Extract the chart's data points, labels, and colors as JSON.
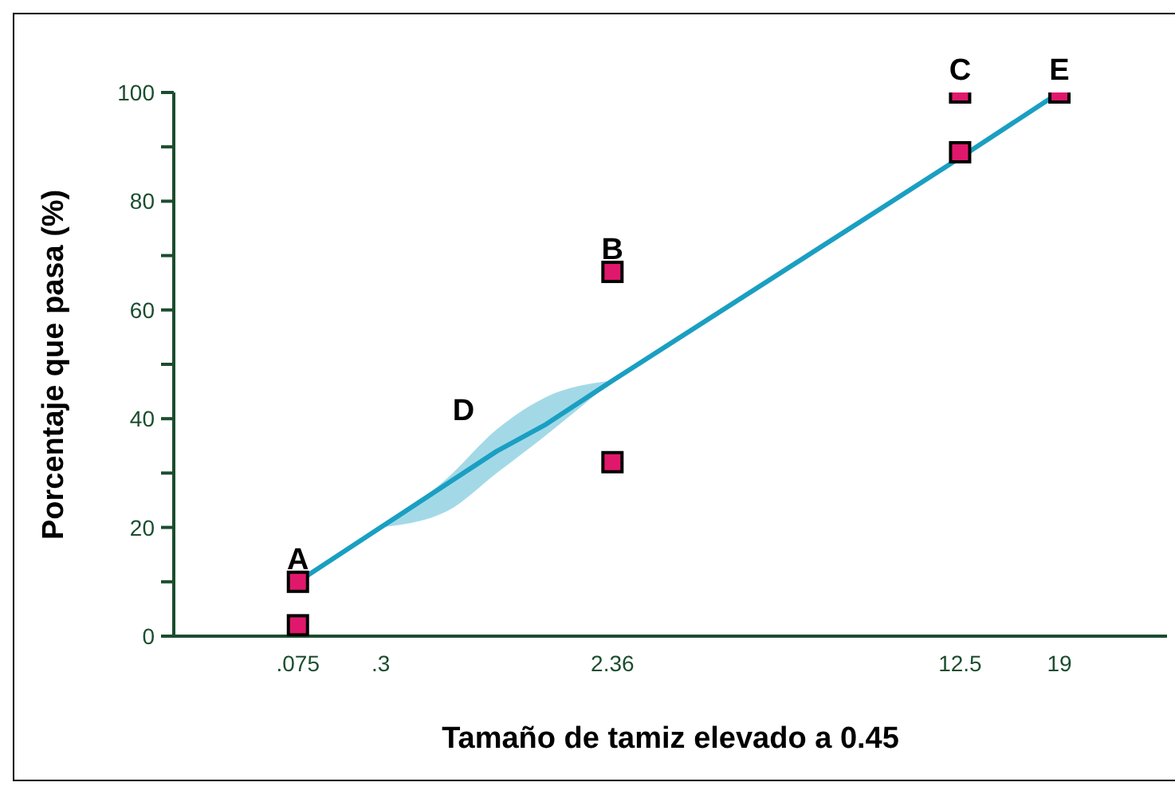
{
  "chart_data": {
    "type": "scatter",
    "xlabel": "Tamaño de tamiz elevado a 0.45",
    "ylabel": "Porcentaje que pasa (%)",
    "categories": [
      null,
      null,
      null,
      null,
      null,
      null,
      null,
      ".075",
      null,
      null,
      null,
      null,
      ".3",
      null,
      null,
      null,
      null,
      null,
      null,
      null,
      null,
      null,
      null,
      null,
      null,
      null,
      "2.36",
      null,
      null,
      null,
      null,
      null,
      null,
      null,
      null,
      null,
      null,
      null,
      null,
      null,
      null,
      null,
      null,
      null,
      null,
      null,
      null,
      "12.5",
      null,
      null,
      null,
      null,
      null,
      "19",
      null,
      null,
      null,
      null,
      null,
      null
    ],
    "ylim": [
      0,
      100
    ],
    "yticks": [
      0,
      {
        "value": 10,
        "label": null
      },
      20,
      {
        "value": 30,
        "label": null
      },
      40,
      {
        "value": 50,
        "label": null
      },
      60,
      {
        "value": 70,
        "label": null
      },
      80,
      {
        "value": 90,
        "label": null
      },
      100
    ],
    "marker": "square",
    "series": [
      {
        "color": "#e0186c",
        "values": [
          null,
          null,
          null,
          null,
          null,
          null,
          null,
          10,
          null,
          null,
          null,
          null,
          null,
          null,
          null,
          null,
          null,
          null,
          null,
          null,
          null,
          null,
          null,
          null,
          null,
          null,
          67,
          null,
          null,
          null,
          null,
          null,
          null,
          null,
          null,
          null,
          null,
          null,
          null,
          null,
          null,
          null,
          null,
          null,
          null,
          null,
          null,
          100,
          null,
          null,
          null,
          null,
          null,
          100,
          null,
          null,
          null,
          null,
          null,
          null
        ]
      },
      {
        "color": "#e0186c",
        "values": [
          null,
          null,
          null,
          null,
          null,
          null,
          null,
          2,
          null,
          null,
          null,
          null,
          null,
          null,
          null,
          null,
          null,
          null,
          null,
          null,
          null,
          null,
          null,
          null,
          null,
          null,
          32,
          null,
          null,
          null,
          null,
          null,
          null,
          null,
          null,
          null,
          null,
          null,
          null,
          null,
          null,
          null,
          null,
          null,
          null,
          null,
          null,
          89,
          null,
          null,
          null,
          null,
          null,
          null,
          null,
          null,
          null,
          null,
          null,
          null
        ]
      },
      {
        "type": "line",
        "color": "#1a9fc2",
        "marker": "none",
        "values": [
          null,
          null,
          null,
          null,
          null,
          null,
          null,
          10,
          null,
          null,
          null,
          null,
          20,
          null,
          null,
          null,
          28,
          null,
          null,
          34,
          null,
          null,
          39,
          null,
          null,
          null,
          47,
          null,
          null,
          null,
          null,
          null,
          null,
          null,
          null,
          null,
          null,
          null,
          null,
          null,
          null,
          null,
          null,
          null,
          null,
          null,
          null,
          88,
          null,
          null,
          null,
          null,
          null,
          100,
          null,
          null,
          null,
          null,
          null,
          null
        ],
        "lower": [
          null,
          null,
          null,
          null,
          null,
          null,
          null,
          null,
          null,
          null,
          null,
          null,
          20,
          null,
          null,
          null,
          23,
          null,
          null,
          30,
          null,
          null,
          37,
          null,
          null,
          null,
          47,
          null,
          null,
          null,
          null,
          null,
          null,
          null,
          null,
          null,
          null,
          null,
          null,
          null,
          null,
          null,
          null,
          null,
          null,
          null,
          null,
          null,
          null,
          null,
          null,
          null,
          null,
          null,
          null,
          null,
          null,
          null,
          null,
          null
        ],
        "upper": [
          null,
          null,
          null,
          null,
          null,
          null,
          null,
          null,
          null,
          null,
          null,
          null,
          20,
          null,
          null,
          null,
          29,
          null,
          null,
          38,
          null,
          null,
          44,
          null,
          null,
          null,
          47,
          null,
          null,
          null,
          null,
          null,
          null,
          null,
          null,
          null,
          null,
          null,
          null,
          null,
          null,
          null,
          null,
          null,
          null,
          null,
          null,
          null,
          null,
          null,
          null,
          null,
          null,
          null,
          null,
          null,
          null,
          null,
          null,
          null
        ]
      }
    ],
    "annotations": [
      {
        "text": "A",
        "x": ".075",
        "y": 10
      },
      {
        "text": "B",
        "x": "2.36",
        "y": 67
      },
      {
        "text": "C",
        "x": "12.5",
        "y": 100
      },
      {
        "text": "E",
        "x": "19",
        "y": 100
      },
      "D"
    ]
  }
}
